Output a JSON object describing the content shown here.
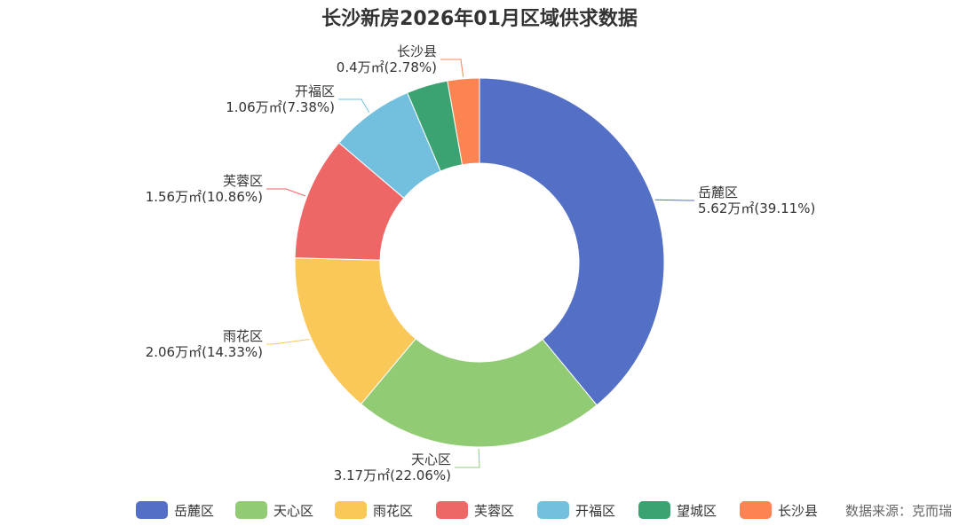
{
  "chart_data": {
    "type": "pie",
    "variant": "donut",
    "title": "长沙新房2026年01月区域供求数据",
    "unit": "万㎡",
    "slices": [
      {
        "name": "岳麓区",
        "value": 5.62,
        "percent": "39.11%",
        "label_value": "5.62万㎡(39.11%)",
        "color": "#5470c6"
      },
      {
        "name": "天心区",
        "value": 3.17,
        "percent": "22.06%",
        "label_value": "3.17万㎡(22.06%)",
        "color": "#91cc75"
      },
      {
        "name": "雨花区",
        "value": 2.06,
        "percent": "14.33%",
        "label_value": "2.06万㎡(14.33%)",
        "color": "#fac858"
      },
      {
        "name": "芙蓉区",
        "value": 1.56,
        "percent": "10.86%",
        "label_value": "1.56万㎡(10.86%)",
        "color": "#ee6666"
      },
      {
        "name": "开福区",
        "value": 1.06,
        "percent": "7.38%",
        "label_value": "1.06万㎡(7.38%)",
        "color": "#73c0de"
      },
      {
        "name": "望城区",
        "value": 0.52,
        "color": "#3ba272"
      },
      {
        "name": "长沙县",
        "value": 0.4,
        "percent": "2.78%",
        "label_value": "0.4万㎡(2.78%)",
        "color": "#fc8452"
      }
    ],
    "legend": [
      "岳麓区",
      "天心区",
      "雨花区",
      "芙蓉区",
      "开福区",
      "望城区",
      "长沙县"
    ],
    "legend_position": "bottom"
  },
  "source": "数据来源：克而瑞"
}
